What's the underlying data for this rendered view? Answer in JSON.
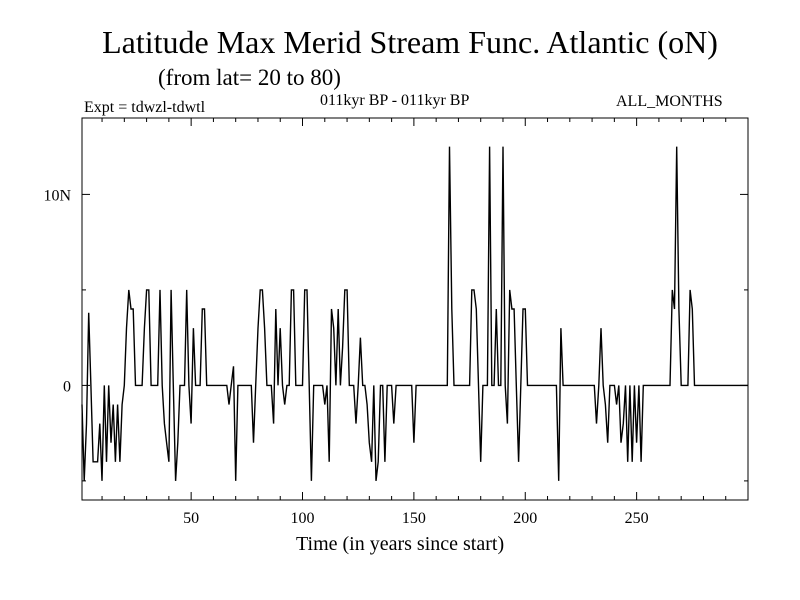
{
  "chart_data": {
    "type": "line",
    "title": "Latitude Max Merid Stream Func. Atlantic (oN)",
    "subtitle": "(from lat= 20 to 80)",
    "experiment": "Expt = tdwzl-tdwtl",
    "period": "011kyr BP - 011kyr BP",
    "months": "ALL_MONTHS",
    "xlabel": "Time (in years since start)",
    "ylabel": "",
    "xlim": [
      1,
      300
    ],
    "ylim": [
      -6,
      14
    ],
    "xticks": [
      {
        "value": 50,
        "label": "50"
      },
      {
        "value": 100,
        "label": "100"
      },
      {
        "value": 150,
        "label": "150"
      },
      {
        "value": 200,
        "label": "200"
      },
      {
        "value": 250,
        "label": "250"
      }
    ],
    "yticks": [
      {
        "value": 0,
        "label": "0"
      },
      {
        "value": 10,
        "label": "10N"
      }
    ],
    "series": [
      {
        "name": "Latitude Max Merid Stream Func.",
        "points": [
          [
            1,
            -1
          ],
          [
            2,
            -5
          ],
          [
            3,
            -2
          ],
          [
            4,
            3.8
          ],
          [
            5,
            0
          ],
          [
            6,
            -4
          ],
          [
            7,
            -4
          ],
          [
            8,
            -4
          ],
          [
            9,
            -2
          ],
          [
            10,
            -5
          ],
          [
            11,
            0
          ],
          [
            12,
            -4
          ],
          [
            13,
            0
          ],
          [
            14,
            -3
          ],
          [
            15,
            -1
          ],
          [
            16,
            -4
          ],
          [
            17,
            -1
          ],
          [
            18,
            -4
          ],
          [
            19,
            -1
          ],
          [
            20,
            0
          ],
          [
            21,
            3
          ],
          [
            22,
            5
          ],
          [
            23,
            4
          ],
          [
            24,
            4
          ],
          [
            25,
            0
          ],
          [
            26,
            0
          ],
          [
            27,
            0
          ],
          [
            28,
            0
          ],
          [
            29,
            3
          ],
          [
            30,
            5
          ],
          [
            31,
            5
          ],
          [
            32,
            0
          ],
          [
            33,
            0
          ],
          [
            34,
            0
          ],
          [
            35,
            0
          ],
          [
            36,
            5
          ],
          [
            37,
            0
          ],
          [
            38,
            -2
          ],
          [
            39,
            -3
          ],
          [
            40,
            -4
          ],
          [
            41,
            5
          ],
          [
            42,
            0
          ],
          [
            43,
            -5
          ],
          [
            44,
            -3
          ],
          [
            45,
            0
          ],
          [
            46,
            0
          ],
          [
            47,
            0
          ],
          [
            48,
            5
          ],
          [
            49,
            0
          ],
          [
            50,
            -2
          ],
          [
            51,
            3
          ],
          [
            52,
            0
          ],
          [
            53,
            0
          ],
          [
            54,
            0
          ],
          [
            55,
            4
          ],
          [
            56,
            4
          ],
          [
            57,
            0
          ],
          [
            58,
            0
          ],
          [
            59,
            0
          ],
          [
            60,
            0
          ],
          [
            61,
            0
          ],
          [
            62,
            0
          ],
          [
            63,
            0
          ],
          [
            64,
            0
          ],
          [
            65,
            0
          ],
          [
            66,
            0
          ],
          [
            67,
            -1
          ],
          [
            68,
            0
          ],
          [
            69,
            1
          ],
          [
            70,
            -5
          ],
          [
            71,
            0
          ],
          [
            72,
            0
          ],
          [
            73,
            0
          ],
          [
            74,
            0
          ],
          [
            75,
            0
          ],
          [
            76,
            0
          ],
          [
            77,
            0
          ],
          [
            78,
            -3
          ],
          [
            79,
            0
          ],
          [
            80,
            3
          ],
          [
            81,
            5
          ],
          [
            82,
            5
          ],
          [
            83,
            3
          ],
          [
            84,
            0
          ],
          [
            85,
            0
          ],
          [
            86,
            0
          ],
          [
            87,
            -2
          ],
          [
            88,
            4
          ],
          [
            89,
            0
          ],
          [
            90,
            3
          ],
          [
            91,
            0
          ],
          [
            92,
            -1
          ],
          [
            93,
            0
          ],
          [
            94,
            0
          ],
          [
            95,
            5
          ],
          [
            96,
            5
          ],
          [
            97,
            0
          ],
          [
            98,
            0
          ],
          [
            99,
            0
          ],
          [
            100,
            0
          ],
          [
            101,
            5
          ],
          [
            102,
            5
          ],
          [
            103,
            0
          ],
          [
            104,
            -5
          ],
          [
            105,
            0
          ],
          [
            106,
            0
          ],
          [
            107,
            0
          ],
          [
            108,
            0
          ],
          [
            109,
            0
          ],
          [
            110,
            -1
          ],
          [
            111,
            0
          ],
          [
            112,
            -4
          ],
          [
            113,
            4
          ],
          [
            114,
            3
          ],
          [
            115,
            0
          ],
          [
            116,
            4
          ],
          [
            117,
            0
          ],
          [
            118,
            2
          ],
          [
            119,
            5
          ],
          [
            120,
            5
          ],
          [
            121,
            0
          ],
          [
            122,
            0
          ],
          [
            123,
            0
          ],
          [
            124,
            -2
          ],
          [
            125,
            0
          ],
          [
            126,
            2.5
          ],
          [
            127,
            0
          ],
          [
            128,
            0
          ],
          [
            129,
            -1
          ],
          [
            130,
            -3
          ],
          [
            131,
            -4
          ],
          [
            132,
            0
          ],
          [
            133,
            -5
          ],
          [
            134,
            -4
          ],
          [
            135,
            0
          ],
          [
            136,
            0
          ],
          [
            137,
            -4
          ],
          [
            138,
            0
          ],
          [
            139,
            0
          ],
          [
            140,
            0
          ],
          [
            141,
            -2
          ],
          [
            142,
            0
          ],
          [
            143,
            0
          ],
          [
            144,
            0
          ],
          [
            145,
            0
          ],
          [
            146,
            0
          ],
          [
            147,
            0
          ],
          [
            148,
            0
          ],
          [
            149,
            0
          ],
          [
            150,
            -3
          ],
          [
            151,
            0
          ],
          [
            152,
            0
          ],
          [
            153,
            0
          ],
          [
            154,
            0
          ],
          [
            155,
            0
          ],
          [
            156,
            0
          ],
          [
            157,
            0
          ],
          [
            158,
            0
          ],
          [
            159,
            0
          ],
          [
            160,
            0
          ],
          [
            161,
            0
          ],
          [
            162,
            0
          ],
          [
            163,
            0
          ],
          [
            164,
            0
          ],
          [
            165,
            0
          ],
          [
            166,
            12.5
          ],
          [
            167,
            4
          ],
          [
            168,
            0
          ],
          [
            169,
            0
          ],
          [
            170,
            0
          ],
          [
            171,
            0
          ],
          [
            172,
            0
          ],
          [
            173,
            0
          ],
          [
            174,
            0
          ],
          [
            175,
            0
          ],
          [
            176,
            5
          ],
          [
            177,
            5
          ],
          [
            178,
            4
          ],
          [
            179,
            0
          ],
          [
            180,
            -4
          ],
          [
            181,
            0
          ],
          [
            182,
            0
          ],
          [
            183,
            0
          ],
          [
            184,
            12.5
          ],
          [
            185,
            0
          ],
          [
            186,
            0
          ],
          [
            187,
            4
          ],
          [
            188,
            0
          ],
          [
            189,
            0
          ],
          [
            190,
            12.5
          ],
          [
            191,
            0
          ],
          [
            192,
            -2
          ],
          [
            193,
            5
          ],
          [
            194,
            4
          ],
          [
            195,
            4
          ],
          [
            196,
            0
          ],
          [
            197,
            -4
          ],
          [
            198,
            0
          ],
          [
            199,
            4
          ],
          [
            200,
            4
          ],
          [
            201,
            0
          ],
          [
            202,
            0
          ],
          [
            203,
            0
          ],
          [
            204,
            0
          ],
          [
            205,
            0
          ],
          [
            206,
            0
          ],
          [
            207,
            0
          ],
          [
            208,
            0
          ],
          [
            209,
            0
          ],
          [
            210,
            0
          ],
          [
            211,
            0
          ],
          [
            212,
            0
          ],
          [
            213,
            0
          ],
          [
            214,
            0
          ],
          [
            215,
            -5
          ],
          [
            216,
            3
          ],
          [
            217,
            0
          ],
          [
            218,
            0
          ],
          [
            219,
            0
          ],
          [
            220,
            0
          ],
          [
            221,
            0
          ],
          [
            222,
            0
          ],
          [
            223,
            0
          ],
          [
            224,
            0
          ],
          [
            225,
            0
          ],
          [
            226,
            0
          ],
          [
            227,
            0
          ],
          [
            228,
            0
          ],
          [
            229,
            0
          ],
          [
            230,
            0
          ],
          [
            231,
            0
          ],
          [
            232,
            -2
          ],
          [
            233,
            0
          ],
          [
            234,
            3
          ],
          [
            235,
            0
          ],
          [
            236,
            -1
          ],
          [
            237,
            -3
          ],
          [
            238,
            0
          ],
          [
            239,
            0
          ],
          [
            240,
            0
          ],
          [
            241,
            -1
          ],
          [
            242,
            0
          ],
          [
            243,
            -3
          ],
          [
            244,
            -2
          ],
          [
            245,
            0
          ],
          [
            246,
            -4
          ],
          [
            247,
            0
          ],
          [
            248,
            -4
          ],
          [
            249,
            0
          ],
          [
            250,
            -3
          ],
          [
            251,
            0
          ],
          [
            252,
            -4
          ],
          [
            253,
            0
          ],
          [
            254,
            0
          ],
          [
            255,
            0
          ],
          [
            256,
            0
          ],
          [
            257,
            0
          ],
          [
            258,
            0
          ],
          [
            259,
            0
          ],
          [
            260,
            0
          ],
          [
            261,
            0
          ],
          [
            262,
            0
          ],
          [
            263,
            0
          ],
          [
            264,
            0
          ],
          [
            265,
            0
          ],
          [
            266,
            5
          ],
          [
            267,
            4
          ],
          [
            268,
            12.5
          ],
          [
            269,
            4
          ],
          [
            270,
            0
          ],
          [
            271,
            0
          ],
          [
            272,
            0
          ],
          [
            273,
            0
          ],
          [
            274,
            5
          ],
          [
            275,
            4
          ],
          [
            276,
            0
          ],
          [
            277,
            0
          ],
          [
            278,
            0
          ],
          [
            279,
            0
          ],
          [
            280,
            0
          ],
          [
            281,
            0
          ],
          [
            282,
            0
          ],
          [
            283,
            0
          ],
          [
            284,
            0
          ],
          [
            285,
            0
          ],
          [
            286,
            0
          ],
          [
            287,
            0
          ],
          [
            288,
            0
          ],
          [
            289,
            0
          ],
          [
            290,
            0
          ],
          [
            291,
            0
          ],
          [
            292,
            0
          ],
          [
            293,
            0
          ],
          [
            294,
            0
          ],
          [
            295,
            0
          ],
          [
            296,
            0
          ],
          [
            297,
            0
          ],
          [
            298,
            0
          ],
          [
            299,
            0
          ],
          [
            300,
            0
          ]
        ]
      }
    ]
  }
}
